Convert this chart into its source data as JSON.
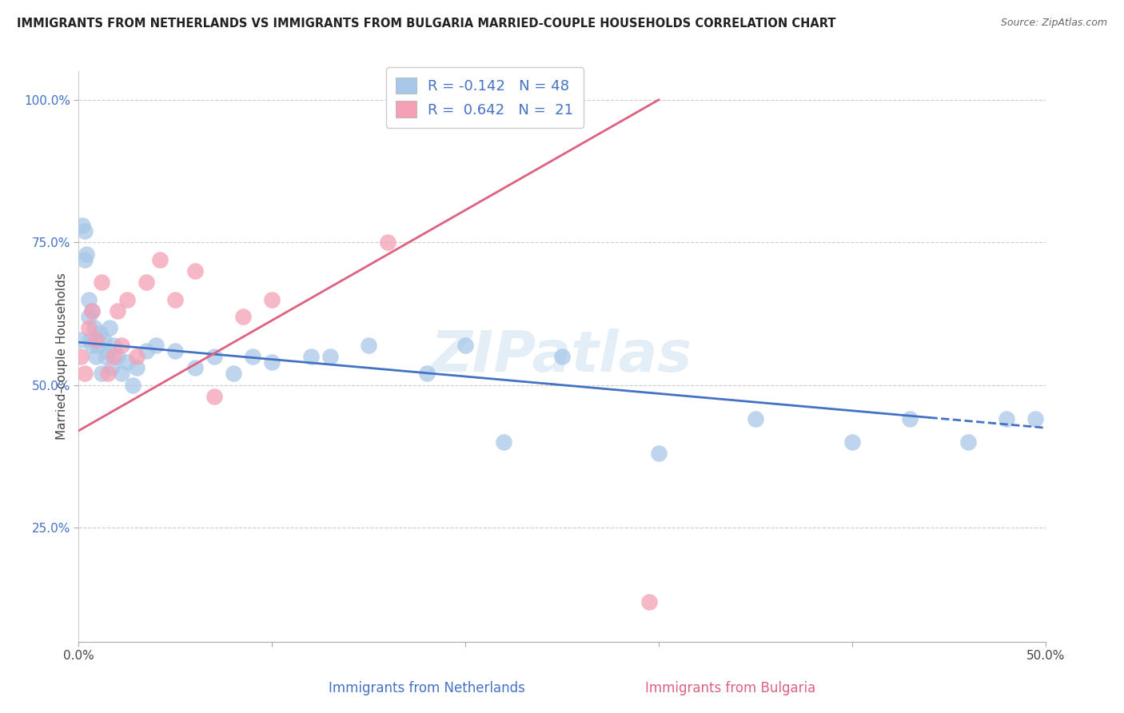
{
  "title": "IMMIGRANTS FROM NETHERLANDS VS IMMIGRANTS FROM BULGARIA MARRIED-COUPLE HOUSEHOLDS CORRELATION CHART",
  "source": "Source: ZipAtlas.com",
  "xlabel_netherlands": "Immigrants from Netherlands",
  "xlabel_bulgaria": "Immigrants from Bulgaria",
  "ylabel": "Married-couple Households",
  "xlim": [
    0,
    0.5
  ],
  "ylim": [
    0.05,
    1.05
  ],
  "yticks": [
    0.25,
    0.5,
    0.75,
    1.0
  ],
  "xticks": [
    0.0,
    0.1,
    0.2,
    0.3,
    0.4,
    0.5
  ],
  "xtick_labels": [
    "0.0%",
    "",
    "",
    "",
    "",
    "50.0%"
  ],
  "ytick_labels": [
    "25.0%",
    "50.0%",
    "75.0%",
    "100.0%"
  ],
  "netherlands_color": "#a8c8e8",
  "bulgaria_color": "#f4a0b5",
  "netherlands_R": -0.142,
  "netherlands_N": 48,
  "bulgaria_R": 0.642,
  "bulgaria_N": 21,
  "trend_netherlands_color": "#4472c4",
  "trend_bulgaria_color": "#e06080",
  "watermark": "ZIPatlas",
  "nl_trend_x0": 0.0,
  "nl_trend_y0": 0.575,
  "nl_trend_x1": 0.5,
  "nl_trend_y1": 0.425,
  "nl_trend_solid_end": 0.44,
  "bg_trend_x0": 0.0,
  "bg_trend_y0": 0.42,
  "bg_trend_x1": 0.3,
  "bg_trend_y1": 1.0,
  "netherlands_x": [
    0.001,
    0.002,
    0.003,
    0.003,
    0.004,
    0.005,
    0.005,
    0.006,
    0.007,
    0.007,
    0.008,
    0.009,
    0.01,
    0.011,
    0.012,
    0.013,
    0.014,
    0.015,
    0.016,
    0.017,
    0.018,
    0.02,
    0.022,
    0.025,
    0.028,
    0.03,
    0.035,
    0.04,
    0.05,
    0.06,
    0.07,
    0.08,
    0.09,
    0.1,
    0.12,
    0.13,
    0.15,
    0.18,
    0.2,
    0.22,
    0.25,
    0.3,
    0.35,
    0.4,
    0.43,
    0.46,
    0.48,
    0.495
  ],
  "netherlands_y": [
    0.58,
    0.78,
    0.72,
    0.77,
    0.73,
    0.65,
    0.62,
    0.58,
    0.63,
    0.57,
    0.6,
    0.55,
    0.57,
    0.59,
    0.52,
    0.58,
    0.55,
    0.56,
    0.6,
    0.53,
    0.57,
    0.55,
    0.52,
    0.54,
    0.5,
    0.53,
    0.56,
    0.57,
    0.56,
    0.53,
    0.55,
    0.52,
    0.55,
    0.54,
    0.55,
    0.55,
    0.57,
    0.52,
    0.57,
    0.4,
    0.55,
    0.38,
    0.44,
    0.4,
    0.44,
    0.4,
    0.44,
    0.44
  ],
  "bulgaria_x": [
    0.001,
    0.003,
    0.005,
    0.007,
    0.009,
    0.012,
    0.015,
    0.018,
    0.02,
    0.022,
    0.025,
    0.03,
    0.035,
    0.042,
    0.05,
    0.06,
    0.07,
    0.085,
    0.1,
    0.16,
    0.295
  ],
  "bulgaria_y": [
    0.55,
    0.52,
    0.6,
    0.63,
    0.58,
    0.68,
    0.52,
    0.55,
    0.63,
    0.57,
    0.65,
    0.55,
    0.68,
    0.72,
    0.65,
    0.7,
    0.48,
    0.62,
    0.65,
    0.75,
    0.12
  ]
}
